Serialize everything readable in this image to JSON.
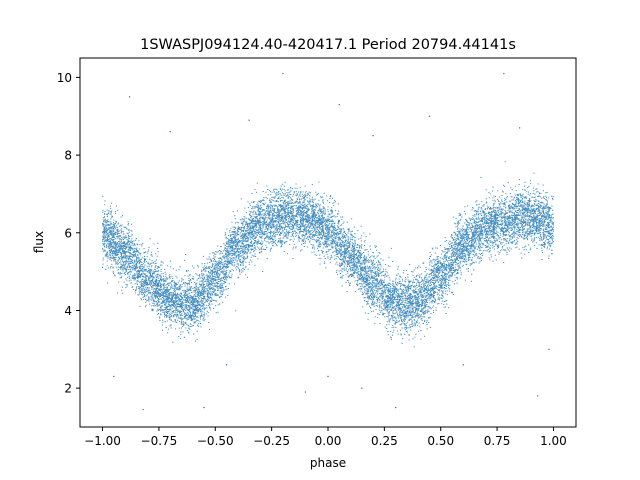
{
  "chart_data": {
    "type": "scatter",
    "title": "1SWASPJ094124.40-420417.1 Period 20794.44141s",
    "xlabel": "phase",
    "ylabel": "flux",
    "xlim": [
      -1.1,
      1.1
    ],
    "ylim": [
      1.0,
      10.5
    ],
    "x_ticks": [
      -1.0,
      -0.75,
      -0.5,
      -0.25,
      0.0,
      0.25,
      0.5,
      0.75,
      1.0
    ],
    "x_tick_labels": [
      "−1.00",
      "−0.75",
      "−0.50",
      "−0.25",
      "0.00",
      "0.25",
      "0.50",
      "0.75",
      "1.00"
    ],
    "y_ticks": [
      2,
      4,
      6,
      8,
      10
    ],
    "y_tick_labels": [
      "2",
      "4",
      "6",
      "8",
      "10"
    ],
    "grid": false,
    "marker_color": "#1f77b4",
    "series": [
      {
        "curve_phase": [
          -1.0,
          -0.9,
          -0.8,
          -0.7,
          -0.65,
          -0.6,
          -0.5,
          -0.4,
          -0.3,
          -0.2,
          -0.1,
          0.0,
          0.1,
          0.2,
          0.3,
          0.35,
          0.4,
          0.5,
          0.6,
          0.7,
          0.8,
          0.9,
          1.0
        ],
        "curve_flux": [
          6.0,
          5.5,
          4.8,
          4.3,
          4.2,
          4.2,
          4.8,
          5.7,
          6.2,
          6.4,
          6.4,
          6.1,
          5.4,
          4.7,
          4.25,
          4.2,
          4.25,
          4.9,
          5.7,
          6.15,
          6.35,
          6.4,
          6.2
        ],
        "scatter_spread": 0.35,
        "point_count": 14000,
        "outliers": [
          [
            -0.95,
            2.3
          ],
          [
            -0.82,
            1.45
          ],
          [
            -0.7,
            8.6
          ],
          [
            -0.55,
            1.5
          ],
          [
            -0.45,
            2.6
          ],
          [
            -0.2,
            10.1
          ],
          [
            0.0,
            2.3
          ],
          [
            0.05,
            9.3
          ],
          [
            0.15,
            2.0
          ],
          [
            0.3,
            1.5
          ],
          [
            0.6,
            2.6
          ],
          [
            0.78,
            10.1
          ],
          [
            0.85,
            8.7
          ],
          [
            0.93,
            1.8
          ],
          [
            -0.88,
            9.5
          ],
          [
            0.45,
            9.0
          ],
          [
            -0.35,
            8.9
          ],
          [
            0.2,
            8.5
          ],
          [
            0.98,
            3.0
          ],
          [
            -0.1,
            1.9
          ]
        ]
      }
    ]
  }
}
